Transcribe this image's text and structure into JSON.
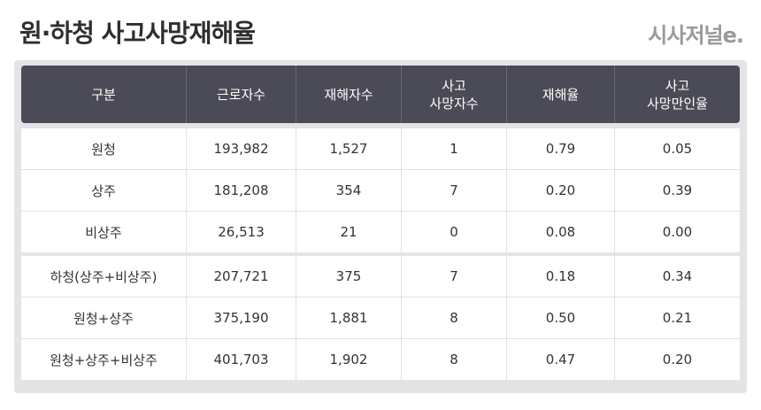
{
  "header": {
    "title": "원·하청 사고사망재해율",
    "logo": "시사저널e."
  },
  "table": {
    "columns": [
      "구분",
      "근로자수",
      "재해자수",
      "사고\n사망자수",
      "재해율",
      "사고\n사망만인율"
    ],
    "rows": [
      [
        "원청",
        "193,982",
        "1,527",
        "1",
        "0.79",
        "0.05"
      ],
      [
        "상주",
        "181,208",
        "354",
        "7",
        "0.20",
        "0.39"
      ],
      [
        "비상주",
        "26,513",
        "21",
        "0",
        "0.08",
        "0.00"
      ],
      [
        "하청(상주+비상주)",
        "207,721",
        "375",
        "7",
        "0.18",
        "0.34"
      ],
      [
        "원청+상주",
        "375,190",
        "1,881",
        "8",
        "0.50",
        "0.21"
      ],
      [
        "원청+상주+비상주",
        "401,703",
        "1,902",
        "8",
        "0.47",
        "0.20"
      ]
    ]
  }
}
